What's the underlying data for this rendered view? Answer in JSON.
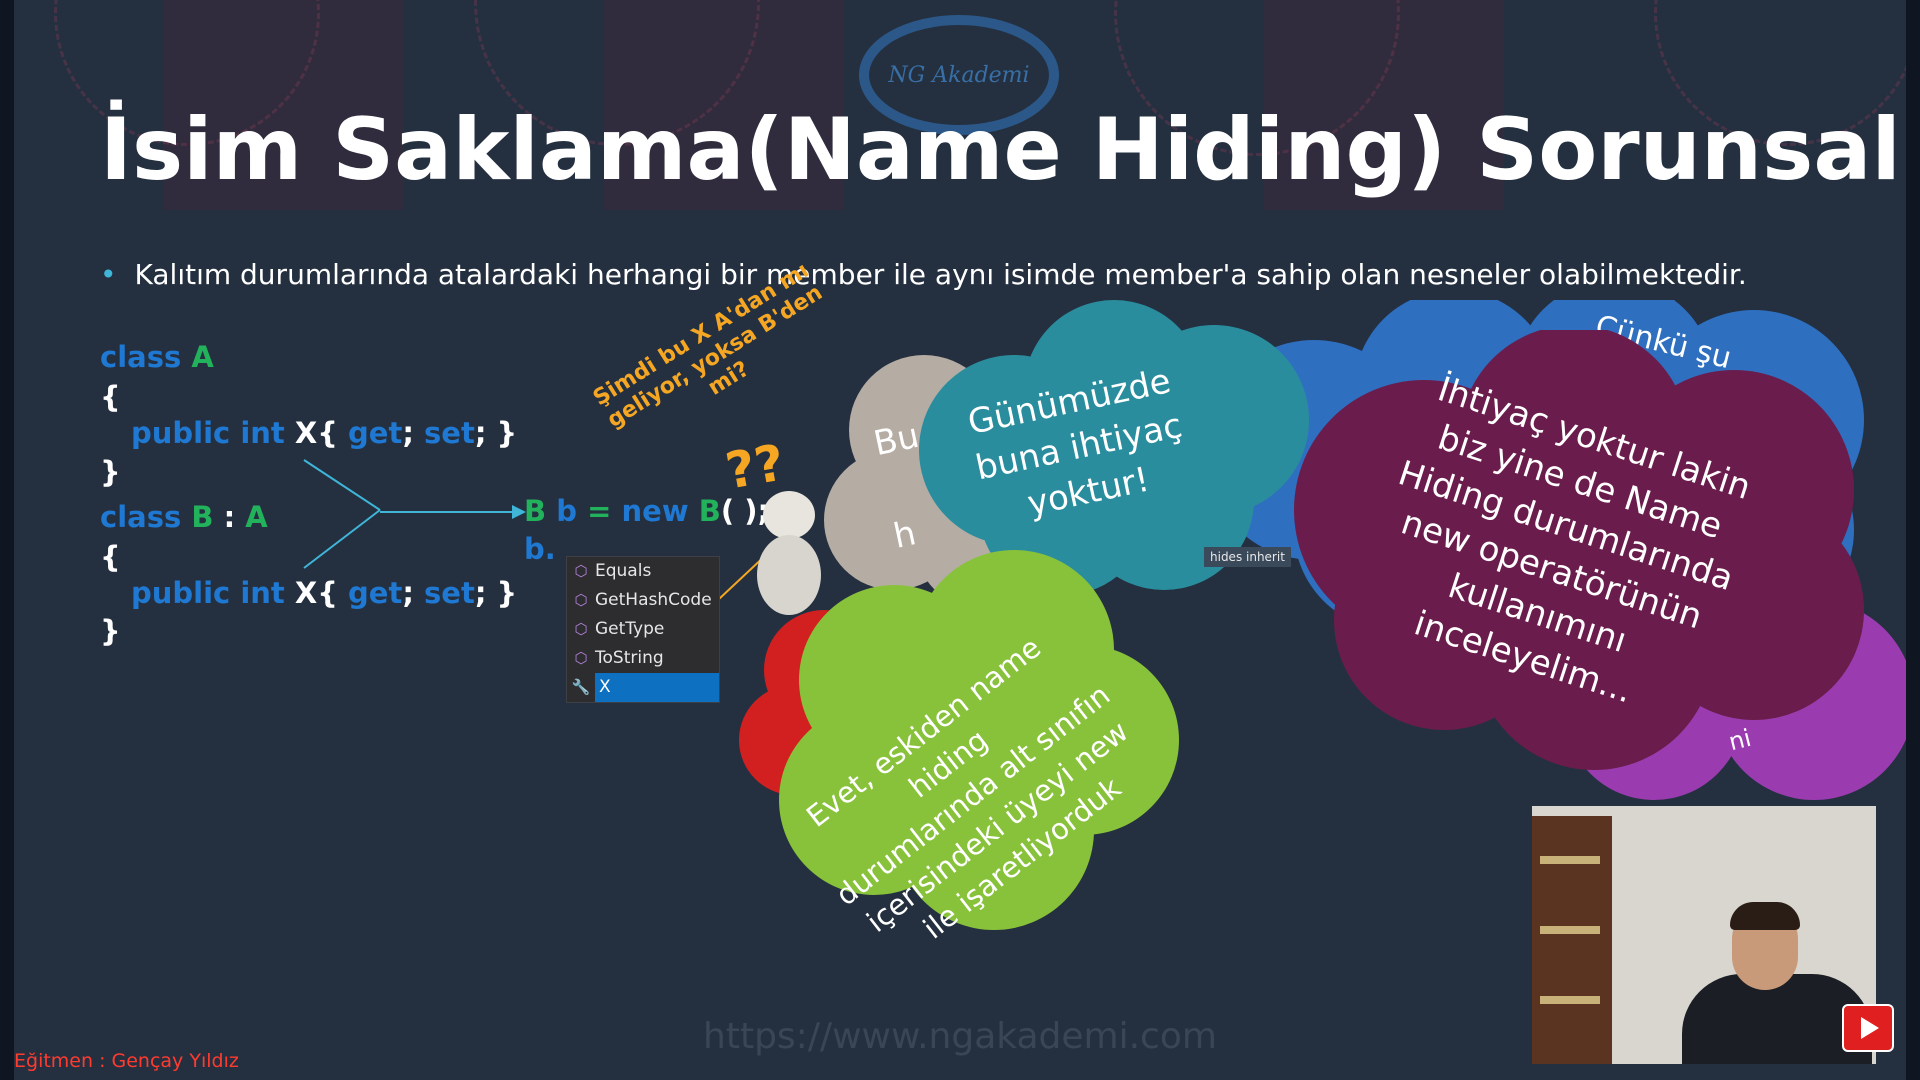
{
  "slide": {
    "logo_text": "NG Akademi",
    "title": "İsim Saklama(Name Hiding) Sorunsalı",
    "bullet": "Kalıtım durumlarında atalardaki herhangi bir member ile aynı isimde member'a sahip olan nesneler olabilmektedir.",
    "code_a": {
      "kw_class": "class",
      "name": "A",
      "open": "{",
      "kw_public_int": "public int",
      "prop": "X",
      "lbrace": "{",
      "get": "get",
      "semi1": ";",
      "set": "set",
      "semi2": ";",
      "rbrace": "}",
      "close": "}"
    },
    "code_b": {
      "kw_class": "class",
      "name": "B",
      "colon": ":",
      "base": "A",
      "open": "{",
      "kw_public_int": "public int",
      "prop": "X",
      "lbrace": "{",
      "get": "get",
      "semi1": ";",
      "set": "set",
      "semi2": ";",
      "rbrace": "}",
      "close": "}"
    },
    "instantiation": {
      "type": "B",
      "var": "b",
      "eq": "=",
      "kw_new": "new",
      "ctor": "B",
      "args": "( );",
      "member_access": "b."
    },
    "annotation_lines": [
      "Şimdi bu X A'dan mı",
      "geliyor, yoksa B'den",
      "mi?"
    ],
    "annotation_marks": "??",
    "intellisense": [
      {
        "label": "Equals",
        "icon": "method-icon"
      },
      {
        "label": "GetHashCode",
        "icon": "method-icon"
      },
      {
        "label": "GetType",
        "icon": "method-icon"
      },
      {
        "label": "ToString",
        "icon": "method-icon"
      },
      {
        "label": "X",
        "icon": "wrench-icon",
        "selected": true
      }
    ],
    "tooltip": "hides inherit",
    "clouds": {
      "gray_partial_1": "Bu",
      "gray_partial_2": "h",
      "teal_lines": [
        "Günümüzde",
        "buna ihtiyaç",
        "yoktur!"
      ],
      "blue_partial_1": "Çünkü şu",
      "blue_partial_2": "ni",
      "green_lines": [
        "Evet, eskiden name",
        "hiding",
        "durumlarında alt sınıfın",
        "içerisindeki üyeyi new",
        "ile işaretliyorduk"
      ],
      "purple_lines": [
        "İhtiyaç yoktur lakin",
        "biz yine de Name",
        "Hiding durumlarında",
        "new operatörünün",
        "kullanımını",
        "inceleyelim..."
      ]
    },
    "url": "https://www.ngakademi.com"
  },
  "overlay": {
    "instructor": "Eğitmen : Gençay Yıldız"
  },
  "colors": {
    "background": "#243040",
    "keyword": "#1f78d1",
    "class_name": "#22b25b",
    "annotation": "#f5a623",
    "cloud_teal": "#2a8d9e",
    "cloud_green": "#88c23b",
    "cloud_purple": "#6a1d4c",
    "cloud_blue": "#2e6fc0",
    "cloud_gray": "#b5aca4",
    "cloud_red": "#d22020",
    "instructor_label": "#ff3b30"
  }
}
